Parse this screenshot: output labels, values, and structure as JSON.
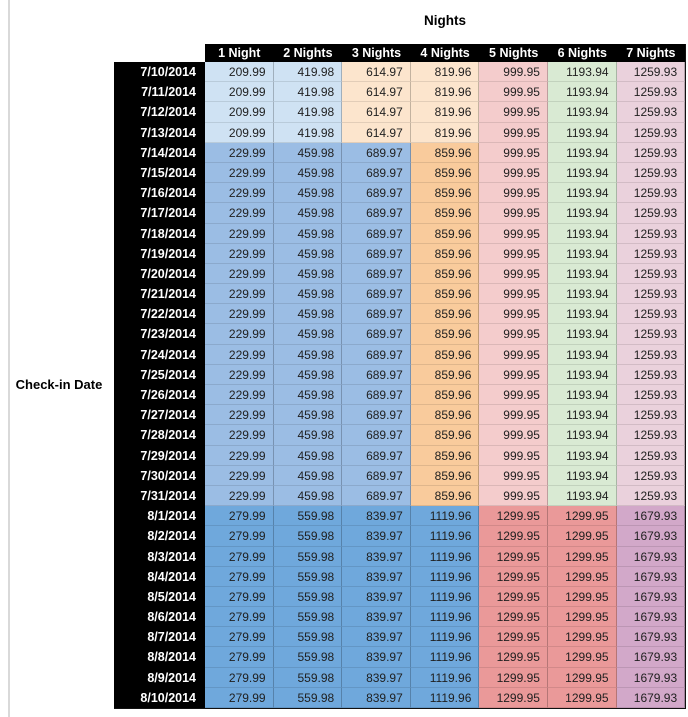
{
  "chart_data": {
    "type": "table",
    "title": "Nights",
    "row_header_label": "Check-in Date",
    "columns": [
      "1 Night",
      "2 Nights",
      "3 Nights",
      "4 Nights",
      "5 Nights",
      "6 Nights",
      "7 Nights"
    ],
    "rows": [
      {
        "date": "7/10/2014",
        "values": [
          "209.99",
          "419.98",
          "614.97",
          "819.96",
          "999.95",
          "1193.94",
          "1259.93"
        ],
        "palette": "early_july"
      },
      {
        "date": "7/11/2014",
        "values": [
          "209.99",
          "419.98",
          "614.97",
          "819.96",
          "999.95",
          "1193.94",
          "1259.93"
        ],
        "palette": "early_july"
      },
      {
        "date": "7/12/2014",
        "values": [
          "209.99",
          "419.98",
          "614.97",
          "819.96",
          "999.95",
          "1193.94",
          "1259.93"
        ],
        "palette": "early_july"
      },
      {
        "date": "7/13/2014",
        "values": [
          "209.99",
          "419.98",
          "614.97",
          "819.96",
          "999.95",
          "1193.94",
          "1259.93"
        ],
        "palette": "early_july"
      },
      {
        "date": "7/14/2014",
        "values": [
          "229.99",
          "459.98",
          "689.97",
          "859.96",
          "999.95",
          "1193.94",
          "1259.93"
        ],
        "palette": "mid_july"
      },
      {
        "date": "7/15/2014",
        "values": [
          "229.99",
          "459.98",
          "689.97",
          "859.96",
          "999.95",
          "1193.94",
          "1259.93"
        ],
        "palette": "mid_july"
      },
      {
        "date": "7/16/2014",
        "values": [
          "229.99",
          "459.98",
          "689.97",
          "859.96",
          "999.95",
          "1193.94",
          "1259.93"
        ],
        "palette": "mid_july"
      },
      {
        "date": "7/17/2014",
        "values": [
          "229.99",
          "459.98",
          "689.97",
          "859.96",
          "999.95",
          "1193.94",
          "1259.93"
        ],
        "palette": "mid_july"
      },
      {
        "date": "7/18/2014",
        "values": [
          "229.99",
          "459.98",
          "689.97",
          "859.96",
          "999.95",
          "1193.94",
          "1259.93"
        ],
        "palette": "mid_july"
      },
      {
        "date": "7/19/2014",
        "values": [
          "229.99",
          "459.98",
          "689.97",
          "859.96",
          "999.95",
          "1193.94",
          "1259.93"
        ],
        "palette": "mid_july"
      },
      {
        "date": "7/20/2014",
        "values": [
          "229.99",
          "459.98",
          "689.97",
          "859.96",
          "999.95",
          "1193.94",
          "1259.93"
        ],
        "palette": "mid_july"
      },
      {
        "date": "7/21/2014",
        "values": [
          "229.99",
          "459.98",
          "689.97",
          "859.96",
          "999.95",
          "1193.94",
          "1259.93"
        ],
        "palette": "mid_july"
      },
      {
        "date": "7/22/2014",
        "values": [
          "229.99",
          "459.98",
          "689.97",
          "859.96",
          "999.95",
          "1193.94",
          "1259.93"
        ],
        "palette": "mid_july"
      },
      {
        "date": "7/23/2014",
        "values": [
          "229.99",
          "459.98",
          "689.97",
          "859.96",
          "999.95",
          "1193.94",
          "1259.93"
        ],
        "palette": "mid_july"
      },
      {
        "date": "7/24/2014",
        "values": [
          "229.99",
          "459.98",
          "689.97",
          "859.96",
          "999.95",
          "1193.94",
          "1259.93"
        ],
        "palette": "mid_july"
      },
      {
        "date": "7/25/2014",
        "values": [
          "229.99",
          "459.98",
          "689.97",
          "859.96",
          "999.95",
          "1193.94",
          "1259.93"
        ],
        "palette": "mid_july"
      },
      {
        "date": "7/26/2014",
        "values": [
          "229.99",
          "459.98",
          "689.97",
          "859.96",
          "999.95",
          "1193.94",
          "1259.93"
        ],
        "palette": "mid_july"
      },
      {
        "date": "7/27/2014",
        "values": [
          "229.99",
          "459.98",
          "689.97",
          "859.96",
          "999.95",
          "1193.94",
          "1259.93"
        ],
        "palette": "mid_july"
      },
      {
        "date": "7/28/2014",
        "values": [
          "229.99",
          "459.98",
          "689.97",
          "859.96",
          "999.95",
          "1193.94",
          "1259.93"
        ],
        "palette": "mid_july"
      },
      {
        "date": "7/29/2014",
        "values": [
          "229.99",
          "459.98",
          "689.97",
          "859.96",
          "999.95",
          "1193.94",
          "1259.93"
        ],
        "palette": "mid_july"
      },
      {
        "date": "7/30/2014",
        "values": [
          "229.99",
          "459.98",
          "689.97",
          "859.96",
          "999.95",
          "1193.94",
          "1259.93"
        ],
        "palette": "mid_july"
      },
      {
        "date": "7/31/2014",
        "values": [
          "229.99",
          "459.98",
          "689.97",
          "859.96",
          "999.95",
          "1193.94",
          "1259.93"
        ],
        "palette": "mid_july"
      },
      {
        "date": "8/1/2014",
        "values": [
          "279.99",
          "559.98",
          "839.97",
          "1119.96",
          "1299.95",
          "1299.95",
          "1679.93"
        ],
        "palette": "august"
      },
      {
        "date": "8/2/2014",
        "values": [
          "279.99",
          "559.98",
          "839.97",
          "1119.96",
          "1299.95",
          "1299.95",
          "1679.93"
        ],
        "palette": "august"
      },
      {
        "date": "8/3/2014",
        "values": [
          "279.99",
          "559.98",
          "839.97",
          "1119.96",
          "1299.95",
          "1299.95",
          "1679.93"
        ],
        "palette": "august"
      },
      {
        "date": "8/4/2014",
        "values": [
          "279.99",
          "559.98",
          "839.97",
          "1119.96",
          "1299.95",
          "1299.95",
          "1679.93"
        ],
        "palette": "august"
      },
      {
        "date": "8/5/2014",
        "values": [
          "279.99",
          "559.98",
          "839.97",
          "1119.96",
          "1299.95",
          "1299.95",
          "1679.93"
        ],
        "palette": "august"
      },
      {
        "date": "8/6/2014",
        "values": [
          "279.99",
          "559.98",
          "839.97",
          "1119.96",
          "1299.95",
          "1299.95",
          "1679.93"
        ],
        "palette": "august"
      },
      {
        "date": "8/7/2014",
        "values": [
          "279.99",
          "559.98",
          "839.97",
          "1119.96",
          "1299.95",
          "1299.95",
          "1679.93"
        ],
        "palette": "august"
      },
      {
        "date": "8/8/2014",
        "values": [
          "279.99",
          "559.98",
          "839.97",
          "1119.96",
          "1299.95",
          "1299.95",
          "1679.93"
        ],
        "palette": "august"
      },
      {
        "date": "8/9/2014",
        "values": [
          "279.99",
          "559.98",
          "839.97",
          "1119.96",
          "1299.95",
          "1299.95",
          "1679.93"
        ],
        "palette": "august"
      },
      {
        "date": "8/10/2014",
        "values": [
          "279.99",
          "559.98",
          "839.97",
          "1119.96",
          "1299.95",
          "1299.95",
          "1679.93"
        ],
        "palette": "august"
      }
    ]
  },
  "style": {
    "header_bg": "#000000",
    "header_fg": "#ffffff",
    "palettes": {
      "early_july": [
        "#cfe2f3",
        "#cfe2f3",
        "#fce5cd",
        "#fce5cd",
        "#f4cccc",
        "#d9ead3",
        "#ead1dc"
      ],
      "mid_july": [
        "#9bbde4",
        "#9bbde4",
        "#9bbde4",
        "#f9cb9c",
        "#f4cccc",
        "#d9ead3",
        "#ead1dc"
      ],
      "august": [
        "#6fa8dc",
        "#6fa8dc",
        "#6fa8dc",
        "#6fa8dc",
        "#ea9999",
        "#ea9999",
        "#d2a8c9"
      ]
    }
  }
}
